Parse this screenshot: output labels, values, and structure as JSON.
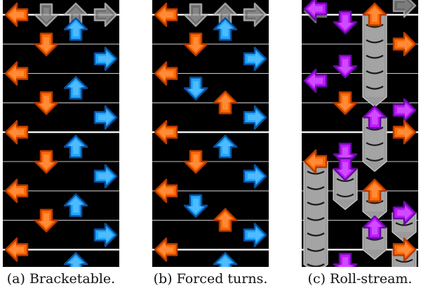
{
  "colors": {
    "background": "#000000",
    "beat_line": "#ffffff",
    "receptor": "#808080",
    "quarter_orange": "#ff6a00",
    "eighth_blue": "#1ea8ff",
    "sixteenth_purple": "#c219ff",
    "roll_body": "#9a9a9a"
  },
  "panels": [
    {
      "caption": "(a) Bracketable.",
      "notes": [
        {
          "lane": 0,
          "beat": 0,
          "color": "orange",
          "type": "tap"
        },
        {
          "lane": 2,
          "beat": 0.5,
          "color": "blue",
          "type": "tap"
        },
        {
          "lane": 1,
          "beat": 1,
          "color": "orange",
          "type": "tap"
        },
        {
          "lane": 3,
          "beat": 1.5,
          "color": "blue",
          "type": "tap"
        },
        {
          "lane": 0,
          "beat": 2,
          "color": "orange",
          "type": "tap"
        },
        {
          "lane": 2,
          "beat": 2.5,
          "color": "blue",
          "type": "tap"
        },
        {
          "lane": 1,
          "beat": 3,
          "color": "orange",
          "type": "tap"
        },
        {
          "lane": 3,
          "beat": 3.5,
          "color": "blue",
          "type": "tap"
        },
        {
          "lane": 0,
          "beat": 4,
          "color": "orange",
          "type": "tap"
        },
        {
          "lane": 2,
          "beat": 4.5,
          "color": "blue",
          "type": "tap"
        },
        {
          "lane": 1,
          "beat": 5,
          "color": "orange",
          "type": "tap"
        },
        {
          "lane": 3,
          "beat": 5.5,
          "color": "blue",
          "type": "tap"
        },
        {
          "lane": 0,
          "beat": 6,
          "color": "orange",
          "type": "tap"
        },
        {
          "lane": 2,
          "beat": 6.5,
          "color": "blue",
          "type": "tap"
        },
        {
          "lane": 1,
          "beat": 7,
          "color": "orange",
          "type": "tap"
        },
        {
          "lane": 3,
          "beat": 7.5,
          "color": "blue",
          "type": "tap"
        },
        {
          "lane": 0,
          "beat": 8,
          "color": "orange",
          "type": "tap"
        },
        {
          "lane": 2,
          "beat": 8.5,
          "color": "blue",
          "type": "tap"
        }
      ]
    },
    {
      "caption": "(b) Forced turns.",
      "notes": [
        {
          "lane": 0,
          "beat": 0,
          "color": "orange",
          "type": "tap"
        },
        {
          "lane": 2,
          "beat": 0.5,
          "color": "blue",
          "type": "tap"
        },
        {
          "lane": 1,
          "beat": 1,
          "color": "orange",
          "type": "tap"
        },
        {
          "lane": 3,
          "beat": 1.5,
          "color": "blue",
          "type": "tap"
        },
        {
          "lane": 0,
          "beat": 2,
          "color": "orange",
          "type": "tap"
        },
        {
          "lane": 1,
          "beat": 2.5,
          "color": "blue",
          "type": "tap"
        },
        {
          "lane": 2,
          "beat": 3,
          "color": "orange",
          "type": "tap"
        },
        {
          "lane": 3,
          "beat": 3.5,
          "color": "blue",
          "type": "tap"
        },
        {
          "lane": 0,
          "beat": 4,
          "color": "orange",
          "type": "tap"
        },
        {
          "lane": 2,
          "beat": 4.5,
          "color": "blue",
          "type": "tap"
        },
        {
          "lane": 1,
          "beat": 5,
          "color": "orange",
          "type": "tap"
        },
        {
          "lane": 3,
          "beat": 5.5,
          "color": "blue",
          "type": "tap"
        },
        {
          "lane": 0,
          "beat": 6,
          "color": "orange",
          "type": "tap"
        },
        {
          "lane": 1,
          "beat": 6.5,
          "color": "blue",
          "type": "tap"
        },
        {
          "lane": 2,
          "beat": 7,
          "color": "orange",
          "type": "tap"
        },
        {
          "lane": 3,
          "beat": 7.5,
          "color": "blue",
          "type": "tap"
        },
        {
          "lane": 0,
          "beat": 8,
          "color": "orange",
          "type": "tap"
        },
        {
          "lane": 2,
          "beat": 8.5,
          "color": "blue",
          "type": "tap"
        }
      ]
    },
    {
      "caption": "(c) Roll-stream.",
      "notes": [
        {
          "lane": 0,
          "beat": -0.2,
          "color": "purple",
          "type": "tap"
        },
        {
          "lane": 1,
          "beat": 0.25,
          "color": "purple",
          "type": "tap"
        },
        {
          "lane": 2,
          "beat": 0,
          "color": "orange",
          "type": "roll",
          "end": 2.8
        },
        {
          "lane": 3,
          "beat": 1,
          "color": "orange",
          "type": "tap"
        },
        {
          "lane": 1,
          "beat": 1.75,
          "color": "purple",
          "type": "tap"
        },
        {
          "lane": 0,
          "beat": 2.25,
          "color": "purple",
          "type": "tap"
        },
        {
          "lane": 1,
          "beat": 3,
          "color": "orange",
          "type": "tap"
        },
        {
          "lane": 3,
          "beat": 3.25,
          "color": "purple",
          "type": "tap"
        },
        {
          "lane": 2,
          "beat": 3.5,
          "color": "purple",
          "type": "roll",
          "end": 5.0
        },
        {
          "lane": 3,
          "beat": 4,
          "color": "orange",
          "type": "tap"
        },
        {
          "lane": 1,
          "beat": 4.75,
          "color": "purple",
          "type": "tap"
        },
        {
          "lane": 0,
          "beat": 5,
          "color": "orange",
          "type": "roll",
          "end": 8.5
        },
        {
          "lane": 1,
          "beat": 5.25,
          "color": "purple",
          "type": "roll",
          "end": 6.3
        },
        {
          "lane": 2,
          "beat": 6,
          "color": "orange",
          "type": "roll",
          "end": 6.7
        },
        {
          "lane": 3,
          "beat": 6.75,
          "color": "purple",
          "type": "roll",
          "end": 7.4
        },
        {
          "lane": 2,
          "beat": 7.25,
          "color": "purple",
          "type": "roll",
          "end": 8.0
        },
        {
          "lane": 3,
          "beat": 8,
          "color": "orange",
          "type": "roll",
          "end": 8.7
        },
        {
          "lane": 1,
          "beat": 8.5,
          "color": "purple",
          "type": "tap"
        }
      ]
    }
  ]
}
